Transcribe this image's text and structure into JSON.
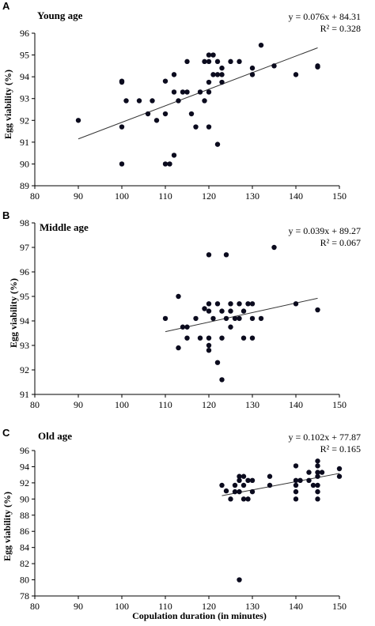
{
  "chart_data": [
    {
      "panel_letter": "A",
      "title": "Young age",
      "type": "scatter",
      "equation": "y = 0.076x + 84.31",
      "r2": "R² = 0.328",
      "ylabel": "Egg viability (%)",
      "xlim": [
        80,
        150
      ],
      "ylim": [
        89,
        96
      ],
      "xticks": [
        80,
        90,
        100,
        110,
        120,
        130,
        140,
        150
      ],
      "yticks": [
        89,
        90,
        91,
        92,
        93,
        94,
        95,
        96
      ],
      "trendline": {
        "slope": 0.076,
        "intercept": 84.31,
        "x_range": [
          90,
          145
        ]
      },
      "points": [
        [
          90,
          92.0
        ],
        [
          100,
          93.8
        ],
        [
          100,
          93.75
        ],
        [
          100,
          91.7
        ],
        [
          100,
          90.0
        ],
        [
          101,
          92.9
        ],
        [
          104,
          92.9
        ],
        [
          106,
          92.3
        ],
        [
          107,
          92.9
        ],
        [
          108,
          92.0
        ],
        [
          110,
          93.8
        ],
        [
          110,
          92.3
        ],
        [
          110,
          90.0
        ],
        [
          111,
          90.0
        ],
        [
          112,
          94.1
        ],
        [
          112,
          93.3
        ],
        [
          112,
          90.4
        ],
        [
          113,
          92.9
        ],
        [
          114,
          93.3
        ],
        [
          115,
          94.7
        ],
        [
          115,
          93.3
        ],
        [
          116,
          92.3
        ],
        [
          117,
          91.7
        ],
        [
          118,
          93.3
        ],
        [
          119,
          94.7
        ],
        [
          119,
          92.9
        ],
        [
          120,
          95.0
        ],
        [
          120,
          94.7
        ],
        [
          120,
          93.75
        ],
        [
          120,
          93.3
        ],
        [
          120,
          91.7
        ],
        [
          121,
          95.0
        ],
        [
          121,
          94.1
        ],
        [
          122,
          94.7
        ],
        [
          122,
          94.1
        ],
        [
          122,
          90.9
        ],
        [
          123,
          94.4
        ],
        [
          123,
          94.1
        ],
        [
          123,
          93.75
        ],
        [
          125,
          94.7
        ],
        [
          127,
          94.7
        ],
        [
          130,
          94.4
        ],
        [
          130,
          94.1
        ],
        [
          132,
          95.45
        ],
        [
          135,
          94.5
        ],
        [
          140,
          94.1
        ],
        [
          145,
          94.5
        ],
        [
          145,
          94.45
        ]
      ]
    },
    {
      "panel_letter": "B",
      "title": "Middle age",
      "type": "scatter",
      "equation": "y = 0.039x + 89.27",
      "r2": "R² = 0.067",
      "ylabel": "Egg viability (%)",
      "xlim": [
        80,
        150
      ],
      "ylim": [
        91,
        98
      ],
      "xticks": [
        80,
        90,
        100,
        110,
        120,
        130,
        140,
        150
      ],
      "yticks": [
        91,
        92,
        93,
        94,
        95,
        96,
        97,
        98
      ],
      "trendline": {
        "slope": 0.039,
        "intercept": 89.27,
        "x_range": [
          110,
          145
        ]
      },
      "points": [
        [
          110,
          94.1
        ],
        [
          113,
          95.0
        ],
        [
          113,
          92.9
        ],
        [
          114,
          93.75
        ],
        [
          115,
          93.75
        ],
        [
          115,
          93.3
        ],
        [
          117,
          94.1
        ],
        [
          118,
          93.3
        ],
        [
          119,
          94.5
        ],
        [
          120,
          96.7
        ],
        [
          120,
          94.7
        ],
        [
          120,
          94.4
        ],
        [
          120,
          93.3
        ],
        [
          120,
          93.0
        ],
        [
          120,
          92.8
        ],
        [
          121,
          94.1
        ],
        [
          122,
          94.7
        ],
        [
          122,
          92.3
        ],
        [
          123,
          94.4
        ],
        [
          123,
          93.3
        ],
        [
          123,
          91.6
        ],
        [
          124,
          96.7
        ],
        [
          124,
          94.1
        ],
        [
          125,
          94.7
        ],
        [
          125,
          94.4
        ],
        [
          125,
          93.75
        ],
        [
          126,
          94.1
        ],
        [
          127,
          94.7
        ],
        [
          127,
          94.1
        ],
        [
          128,
          94.4
        ],
        [
          128,
          93.3
        ],
        [
          129,
          94.7
        ],
        [
          130,
          94.7
        ],
        [
          130,
          94.1
        ],
        [
          130,
          93.3
        ],
        [
          132,
          94.1
        ],
        [
          135,
          97.0
        ],
        [
          140,
          94.7
        ],
        [
          145,
          94.45
        ]
      ]
    },
    {
      "panel_letter": "C",
      "title": "Old age",
      "type": "scatter",
      "equation": "y = 0.102x + 77.87",
      "r2": "R² = 0.165",
      "ylabel": "Egg viability (%)",
      "xlabel": "Copulation duration (in minutes)",
      "xlim": [
        80,
        150
      ],
      "ylim": [
        78,
        96
      ],
      "xticks": [
        80,
        90,
        100,
        110,
        120,
        130,
        140,
        150
      ],
      "yticks": [
        78,
        80,
        82,
        84,
        86,
        88,
        90,
        92,
        94,
        96
      ],
      "trendline": {
        "slope": 0.102,
        "intercept": 77.87,
        "x_range": [
          123,
          150
        ]
      },
      "points": [
        [
          123,
          91.7
        ],
        [
          124,
          91.0
        ],
        [
          125,
          90.0
        ],
        [
          126,
          90.9
        ],
        [
          126,
          91.7
        ],
        [
          127,
          92.8
        ],
        [
          127,
          92.3
        ],
        [
          127,
          90.9
        ],
        [
          127,
          80.0
        ],
        [
          128,
          92.8
        ],
        [
          128,
          91.7
        ],
        [
          128,
          90.0
        ],
        [
          129,
          92.3
        ],
        [
          129,
          90.0
        ],
        [
          130,
          92.3
        ],
        [
          130,
          90.9
        ],
        [
          134,
          92.8
        ],
        [
          134,
          91.7
        ],
        [
          140,
          94.1
        ],
        [
          140,
          92.3
        ],
        [
          140,
          91.7
        ],
        [
          140,
          90.9
        ],
        [
          140,
          90.0
        ],
        [
          141,
          92.3
        ],
        [
          143,
          92.3
        ],
        [
          143,
          93.3
        ],
        [
          144,
          91.7
        ],
        [
          145,
          94.7
        ],
        [
          145,
          94.1
        ],
        [
          145,
          93.3
        ],
        [
          145,
          92.8
        ],
        [
          145,
          91.7
        ],
        [
          145,
          90.9
        ],
        [
          145,
          90.0
        ],
        [
          146,
          93.3
        ],
        [
          150,
          93.75
        ],
        [
          150,
          92.8
        ]
      ]
    }
  ]
}
